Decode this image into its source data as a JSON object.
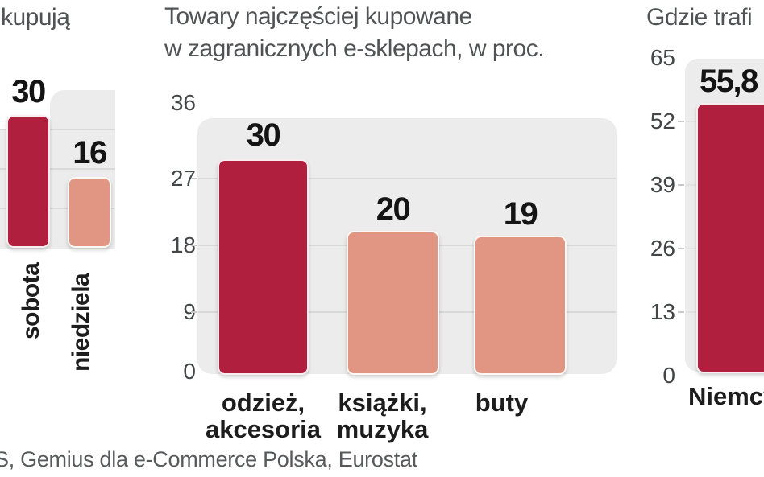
{
  "source": "S, Gemius dla e-Commerce Polska, Eurostat",
  "colors": {
    "bar_primary": "#b01f3e",
    "bar_secondary": "#e19683",
    "panel": "#ececec",
    "gridline": "#d9d9d9",
    "title_text": "#505254",
    "tick_text": "#434547",
    "label_text": "#1d1d1d"
  },
  "chart_data": [
    {
      "type": "bar",
      "title": "kupują",
      "categories": [
        "sobota",
        "niedziela"
      ],
      "values": [
        30,
        16
      ],
      "bar_colors": [
        "#b01f3e",
        "#e19683"
      ],
      "ylim": [
        0,
        36
      ],
      "grid": true,
      "legend": false
    },
    {
      "type": "bar",
      "title": "Towary najczęściej kupowane w zagranicznych e-sklepach, w proc.",
      "title_lines": [
        "Towary najczęściej kupowane",
        "w zagranicznych e-sklepach, w proc."
      ],
      "categories": [
        "odzież, akcesoria",
        "książki, muzyka",
        "buty"
      ],
      "category_lines": [
        [
          "odzież,",
          "akcesoria"
        ],
        [
          "książki,",
          "muzyka"
        ],
        [
          "buty",
          ""
        ]
      ],
      "values": [
        30,
        20,
        19
      ],
      "bar_colors": [
        "#b01f3e",
        "#e19683",
        "#e19683"
      ],
      "yticks": [
        36,
        27,
        18,
        9,
        0
      ],
      "ylim": [
        0,
        36
      ],
      "grid": true,
      "legend": false
    },
    {
      "type": "bar",
      "title": "Gdzie trafi",
      "categories": [
        "Niemcy"
      ],
      "values": [
        55.8
      ],
      "value_labels": [
        "55,8"
      ],
      "bar_colors": [
        "#b01f3e"
      ],
      "yticks": [
        65,
        52,
        39,
        26,
        13,
        0
      ],
      "ylim": [
        0,
        65
      ],
      "grid": true,
      "legend": false
    }
  ]
}
